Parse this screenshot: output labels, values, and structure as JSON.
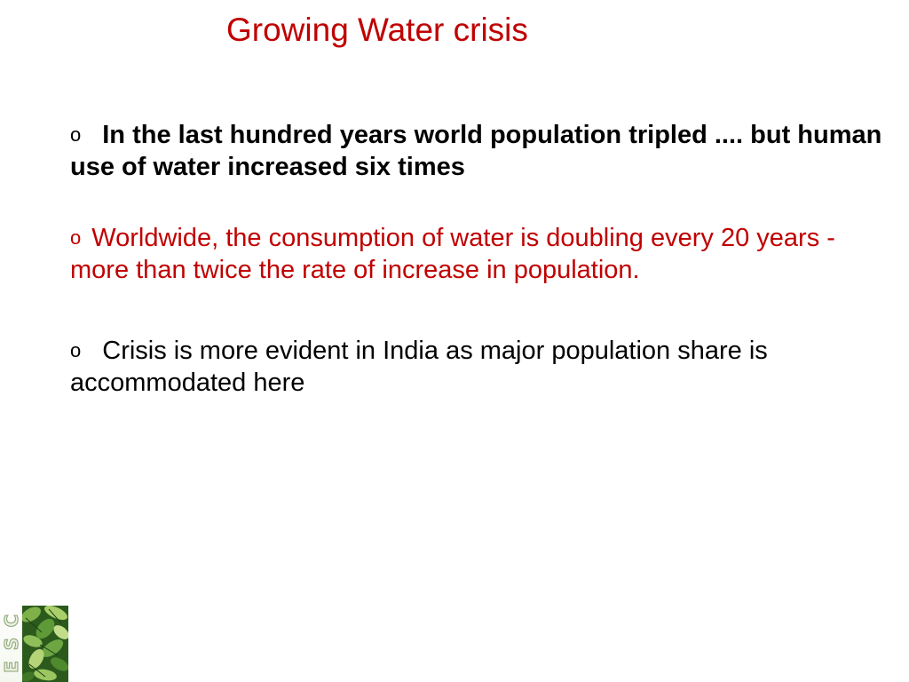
{
  "slide": {
    "title": "Growing Water crisis",
    "bullets": [
      {
        "marker": "o",
        "text": "In the last hundred years world population tripled .... but human use of water increased six times"
      },
      {
        "marker": "o",
        "text": "Worldwide, the consumption of water is doubling every 20 years - more than twice the rate of increase in population."
      },
      {
        "marker": "o",
        "text": "Crisis is more evident in India as major population share is accommodated here"
      }
    ]
  },
  "logo": {
    "letters": [
      "C",
      "S",
      "E"
    ],
    "icon": "leaves-icon"
  },
  "colors": {
    "title": "#c00000",
    "highlight_bullet": "#c00000",
    "body_text": "#000000",
    "background": "#ffffff"
  }
}
